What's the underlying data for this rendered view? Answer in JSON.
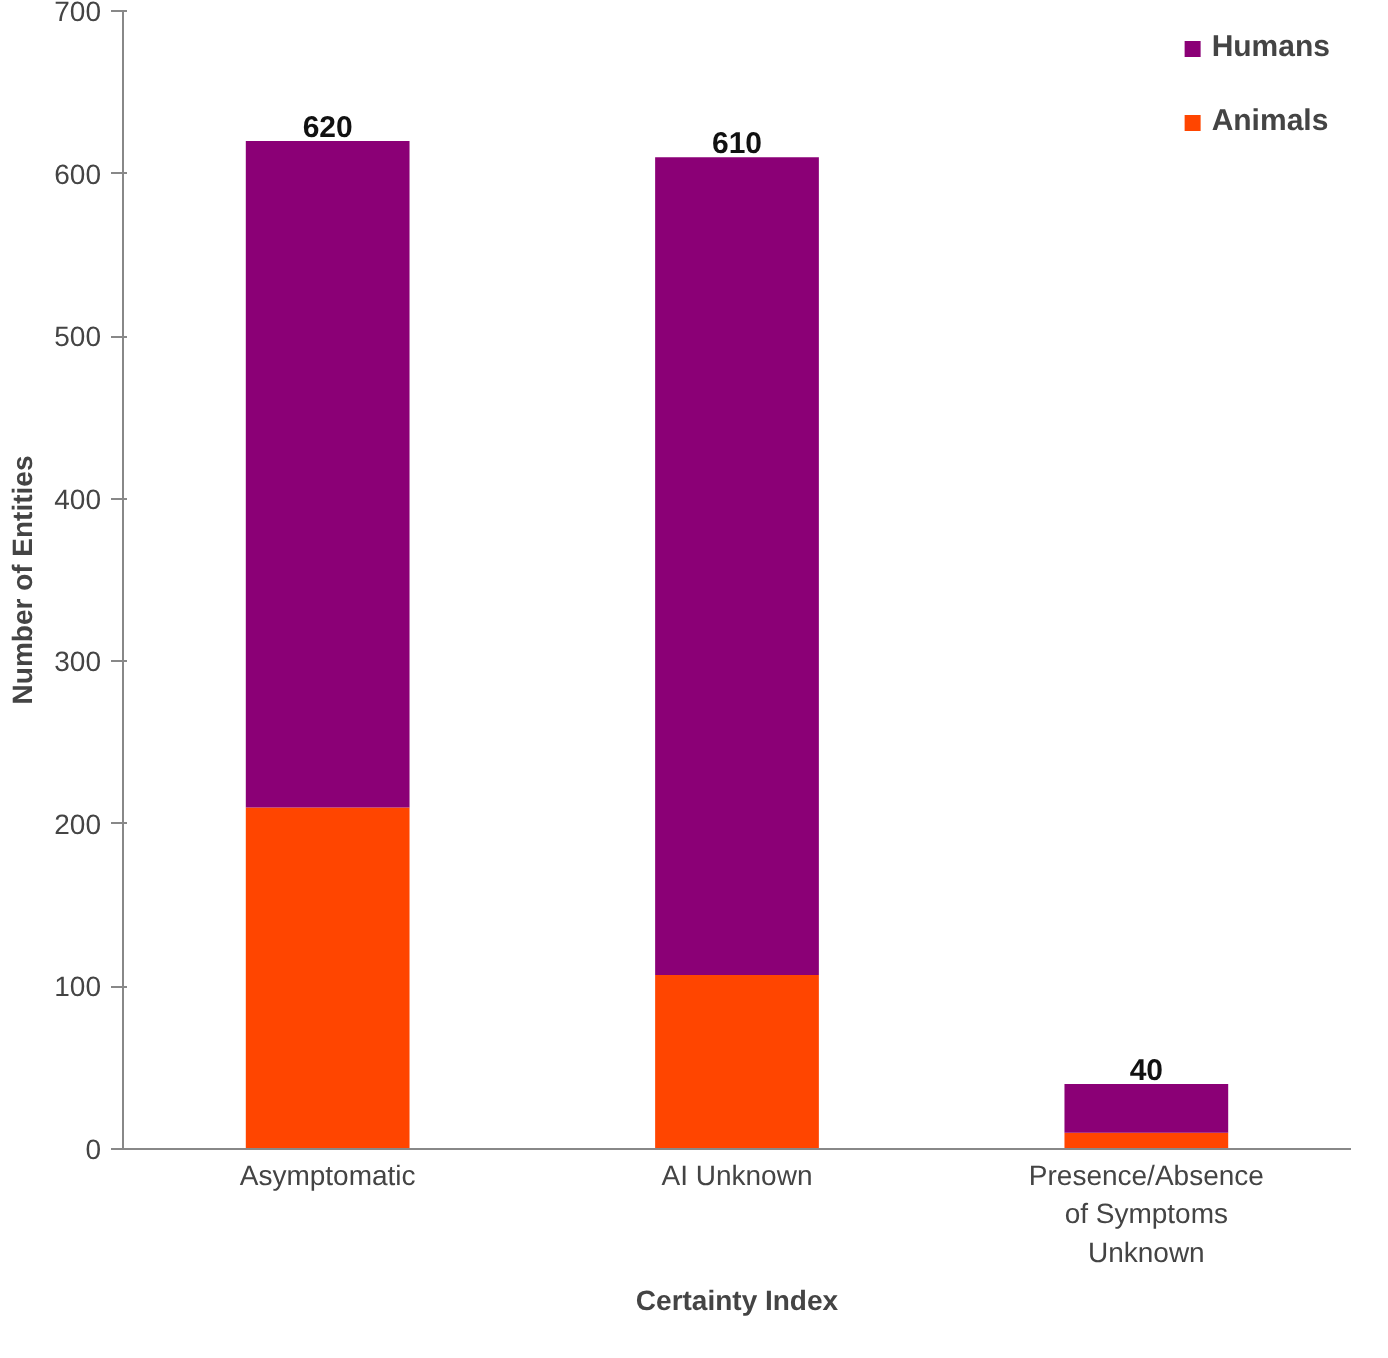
{
  "chart_data": {
    "type": "bar",
    "stacked": true,
    "xlabel": "Certainty Index",
    "ylabel": "Number of Entities",
    "categories": [
      "Asymptomatic",
      "AI Unknown",
      "Presence/Absence of Symptoms Unknown"
    ],
    "series": [
      {
        "name": "Animals",
        "color": "#ff4500",
        "values": [
          210,
          107,
          10
        ]
      },
      {
        "name": "Humans",
        "color": "#8b0076",
        "values": [
          410,
          503,
          30
        ]
      }
    ],
    "totals": [
      "620",
      "610",
      "40"
    ],
    "ylim": [
      0,
      700
    ],
    "yticks": [
      0,
      100,
      200,
      300,
      400,
      500,
      600,
      700
    ],
    "grid": false,
    "legend": "top right"
  }
}
